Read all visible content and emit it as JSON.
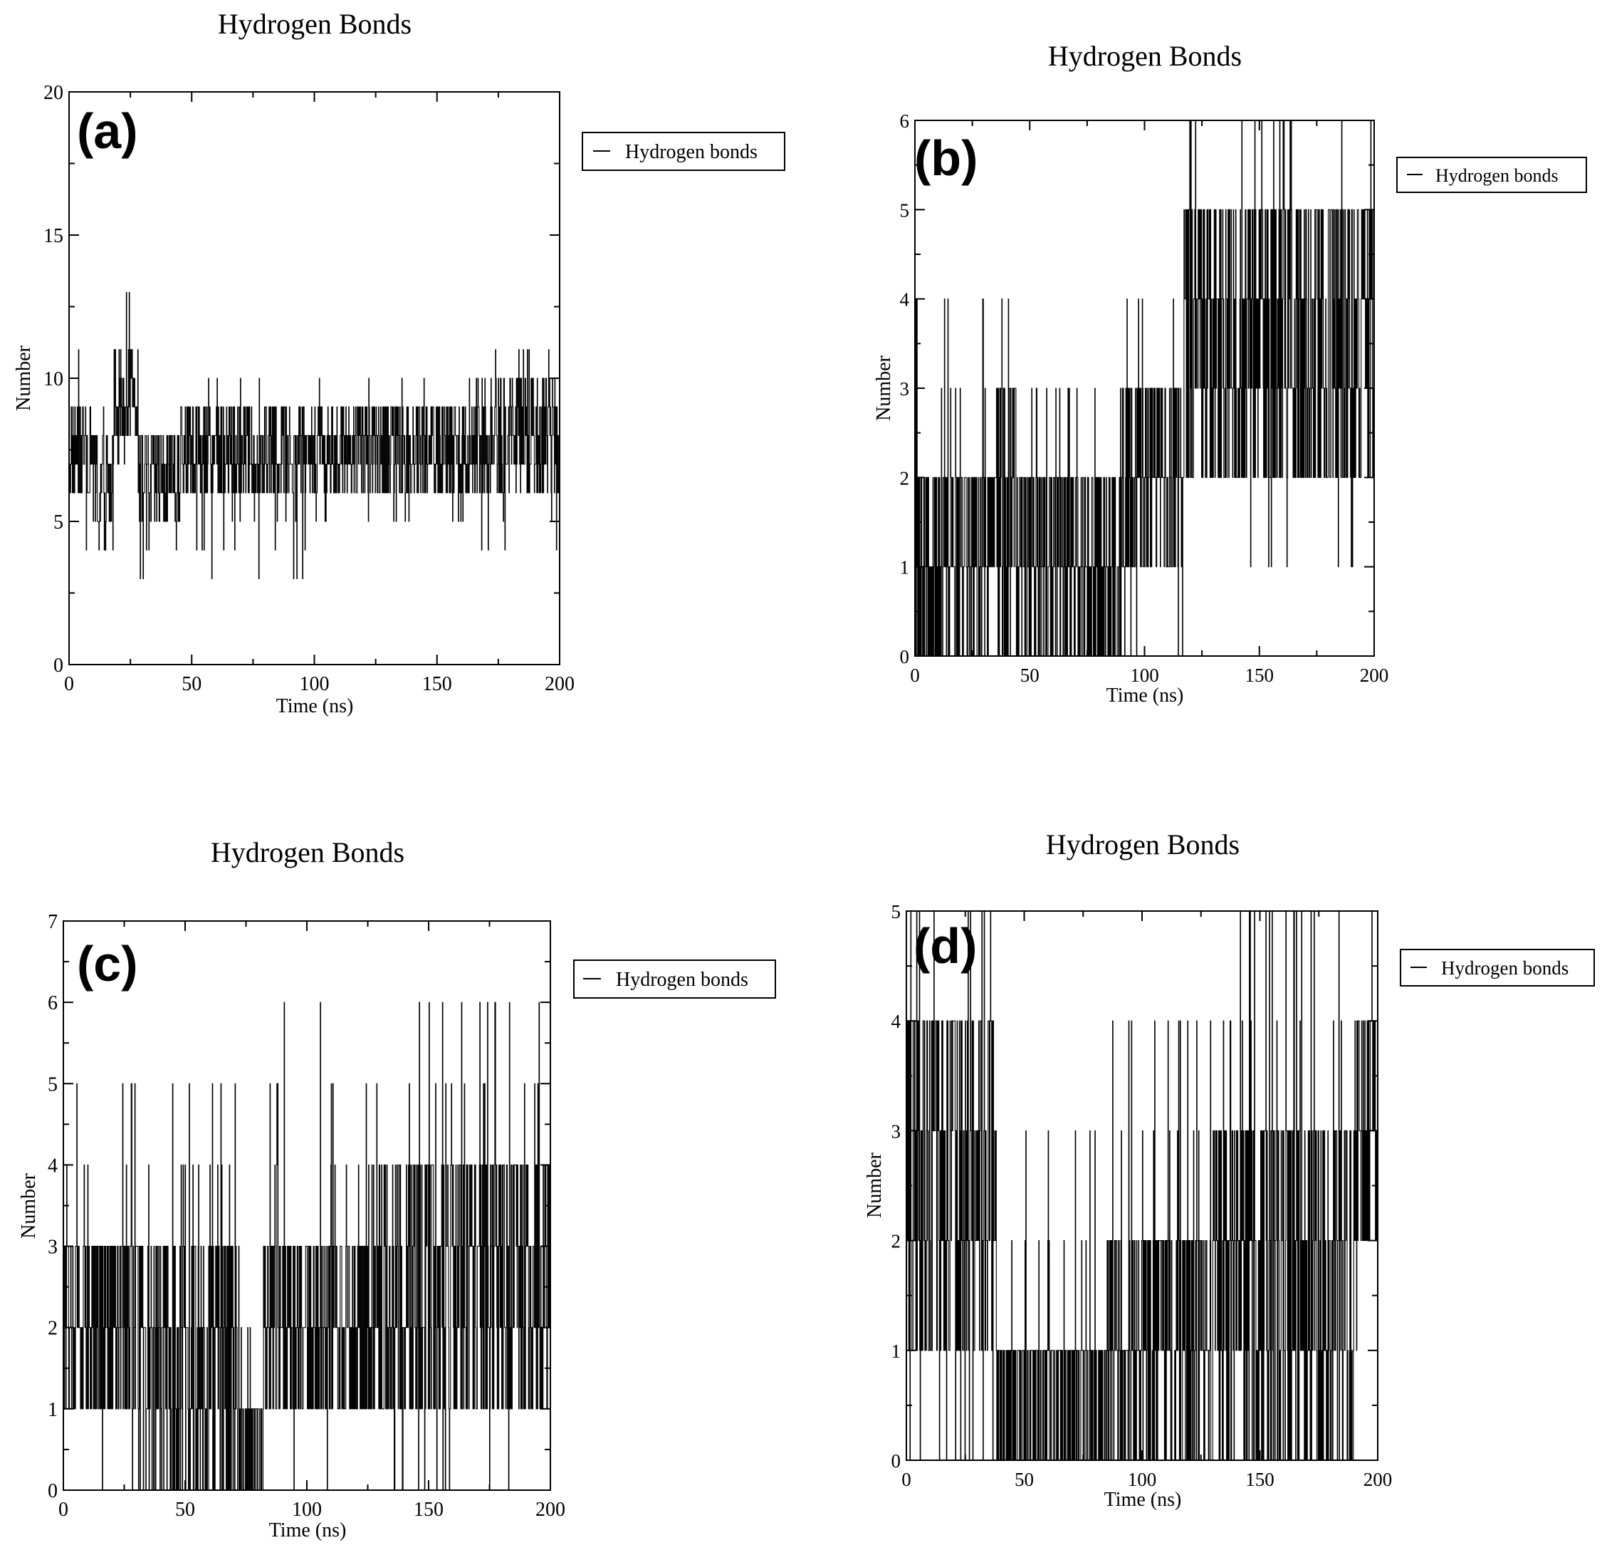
{
  "chart_data": [
    {
      "type": "line",
      "panel_label": "(a)",
      "title": "Hydrogen Bonds",
      "xlabel": "Time (ns)",
      "ylabel": "Number",
      "xlim": [
        0,
        200
      ],
      "ylim": [
        0,
        20
      ],
      "xticks": [
        0,
        50,
        100,
        150,
        200
      ],
      "yticks": [
        0,
        5,
        10,
        15,
        20
      ],
      "legend_position": "top-right-outside",
      "series": [
        {
          "name": "Hydrogen bonds",
          "color": "#000000",
          "segments": [
            {
              "x": [
                0,
                10
              ],
              "range": [
                4,
                11
              ],
              "core": [
                6,
                9
              ]
            },
            {
              "x": [
                10,
                18
              ],
              "range": [
                3,
                9
              ],
              "core": [
                4,
                8
              ]
            },
            {
              "x": [
                18,
                28
              ],
              "range": [
                7,
                13
              ],
              "core": [
                8,
                11
              ]
            },
            {
              "x": [
                28,
                45
              ],
              "range": [
                3,
                8
              ],
              "core": [
                5,
                8
              ]
            },
            {
              "x": [
                45,
                100
              ],
              "range": [
                3,
                10
              ],
              "core": [
                6,
                9
              ]
            },
            {
              "x": [
                100,
                165
              ],
              "range": [
                5,
                10
              ],
              "core": [
                6,
                9
              ]
            },
            {
              "x": [
                165,
                200
              ],
              "range": [
                4,
                11
              ],
              "core": [
                6,
                10
              ]
            }
          ]
        }
      ]
    },
    {
      "type": "line",
      "panel_label": "(b)",
      "title": "Hydrogen Bonds",
      "xlabel": "Time (ns)",
      "ylabel": "Number",
      "xlim": [
        0,
        200
      ],
      "ylim": [
        0,
        6
      ],
      "xticks": [
        0,
        50,
        100,
        150,
        200
      ],
      "yticks": [
        0,
        1,
        2,
        3,
        4,
        5,
        6
      ],
      "legend_position": "top-right-outside",
      "series": [
        {
          "name": "Hydrogen bonds",
          "color": "#000000",
          "segments": [
            {
              "x": [
                0,
                35
              ],
              "range": [
                0,
                4
              ],
              "core": [
                0,
                2
              ]
            },
            {
              "x": [
                35,
                45
              ],
              "range": [
                0,
                4
              ],
              "core": [
                0,
                3
              ]
            },
            {
              "x": [
                45,
                90
              ],
              "range": [
                0,
                3
              ],
              "core": [
                0,
                2
              ]
            },
            {
              "x": [
                90,
                117
              ],
              "range": [
                0,
                4
              ],
              "core": [
                1,
                3
              ]
            },
            {
              "x": [
                117,
                200
              ],
              "range": [
                1,
                6
              ],
              "core": [
                2,
                5
              ]
            }
          ]
        }
      ]
    },
    {
      "type": "line",
      "panel_label": "(c)",
      "title": "Hydrogen Bonds",
      "xlabel": "Time (ns)",
      "ylabel": "Number",
      "xlim": [
        0,
        200
      ],
      "ylim": [
        0,
        7
      ],
      "xticks": [
        0,
        50,
        100,
        150,
        200
      ],
      "yticks": [
        0,
        1,
        2,
        3,
        4,
        5,
        6,
        7
      ],
      "legend_position": "top-right-outside",
      "series": [
        {
          "name": "Hydrogen bonds",
          "color": "#000000",
          "segments": [
            {
              "x": [
                0,
                30
              ],
              "range": [
                0,
                5
              ],
              "core": [
                1,
                3
              ]
            },
            {
              "x": [
                30,
                72
              ],
              "range": [
                0,
                5
              ],
              "core": [
                0,
                3
              ]
            },
            {
              "x": [
                72,
                82
              ],
              "range": [
                0,
                2
              ],
              "core": [
                0,
                1
              ]
            },
            {
              "x": [
                82,
                125
              ],
              "range": [
                0,
                6
              ],
              "core": [
                1,
                3
              ]
            },
            {
              "x": [
                125,
                200
              ],
              "range": [
                0,
                6
              ],
              "core": [
                1,
                4
              ]
            }
          ]
        }
      ]
    },
    {
      "type": "line",
      "panel_label": "(d)",
      "title": "Hydrogen Bonds",
      "xlabel": "Time (ns)",
      "ylabel": "Number",
      "xlim": [
        0,
        200
      ],
      "ylim": [
        0,
        5
      ],
      "xticks": [
        0,
        50,
        100,
        150,
        200
      ],
      "yticks": [
        0,
        1,
        2,
        3,
        4,
        5
      ],
      "legend_position": "top-right-outside",
      "series": [
        {
          "name": "Hydrogen bonds",
          "color": "#000000",
          "segments": [
            {
              "x": [
                0,
                38
              ],
              "range": [
                0,
                5
              ],
              "core": [
                1,
                4
              ]
            },
            {
              "x": [
                38,
                85
              ],
              "range": [
                0,
                3
              ],
              "core": [
                0,
                1
              ]
            },
            {
              "x": [
                85,
                130
              ],
              "range": [
                0,
                4
              ],
              "core": [
                0,
                2
              ]
            },
            {
              "x": [
                130,
                190
              ],
              "range": [
                0,
                5
              ],
              "core": [
                0,
                3
              ]
            },
            {
              "x": [
                190,
                200
              ],
              "range": [
                1,
                5
              ],
              "core": [
                2,
                4
              ]
            }
          ]
        }
      ]
    }
  ]
}
